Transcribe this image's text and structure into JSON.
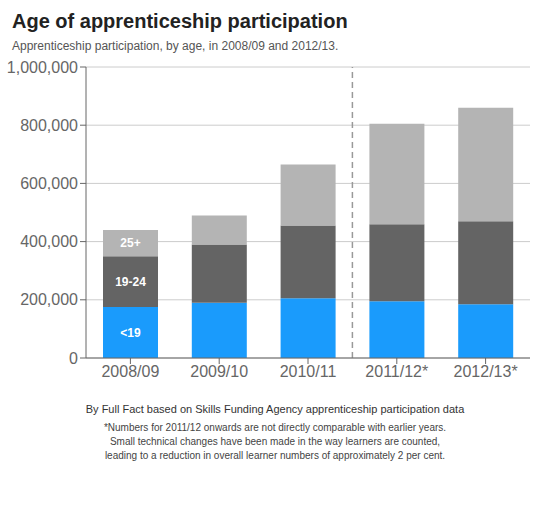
{
  "chart_data": {
    "type": "bar",
    "stacked": true,
    "title": "Age of apprenticeship participation",
    "subtitle": "Apprenticeship participation, by age, in 2008/09 and 2012/13.",
    "categories": [
      "2008/09",
      "2009/10",
      "2010/11",
      "2011/12*",
      "2012/13*"
    ],
    "series": [
      {
        "name": "<19",
        "color": "#1a9bfc",
        "values": [
          175000,
          190000,
          205000,
          195000,
          185000
        ]
      },
      {
        "name": "19-24",
        "color": "#646464",
        "values": [
          175000,
          200000,
          250000,
          265000,
          285000
        ]
      },
      {
        "name": "25+",
        "color": "#b4b4b4",
        "values": [
          90000,
          100000,
          210000,
          345000,
          390000
        ]
      }
    ],
    "ylim": [
      0,
      1000000
    ],
    "yticks": [
      0,
      {
        "value": 200000,
        "label": "200,000"
      },
      {
        "value": 400000,
        "label": "400,000"
      },
      {
        "value": 600000,
        "label": "600,000"
      },
      {
        "value": 800000,
        "label": "800,000"
      },
      {
        "value": 1000000,
        "label": "1,000,000"
      }
    ],
    "grid": true,
    "footnotes": [
      "By Full Fact based on Skills Funding Agency apprenticeship participation data",
      "*Numbers for 2011/12 onwards are not directly comparable with earlier years.",
      "Small technical changes have been made in the way learners are counted,",
      "leading to a reduction in overall learner numbers of approximately 2 per cent."
    ]
  }
}
